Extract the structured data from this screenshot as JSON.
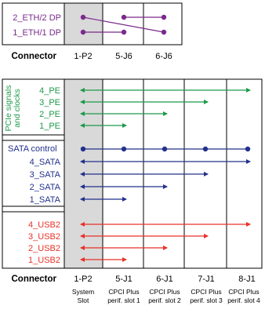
{
  "colors": {
    "purple": "#7a2a8c",
    "green": "#1f9a4a",
    "blue": "#23318c",
    "red": "#e8322a",
    "slot_gray": "#d9d9d9",
    "border": "#000000"
  },
  "top_panel": {
    "signals": [
      "2_ETH/2 DP",
      "1_ETH/1 DP"
    ],
    "connector_label": "Connector",
    "connectors": [
      "1-P2",
      "5-J6",
      "6-J6"
    ]
  },
  "bottom_panel": {
    "pcie_group_label_line1": "PCIe signals",
    "pcie_group_label_line2": "and clocks",
    "pcie_signals": [
      "4_PE",
      "3_PE",
      "2_PE",
      "1_PE"
    ],
    "sata_control_label": "SATA control",
    "sata_signals": [
      "4_SATA",
      "3_SATA",
      "2_SATA",
      "1_SATA"
    ],
    "usb_signals": [
      "4_USB2",
      "3_USB2",
      "2_USB2",
      "1_USB2"
    ],
    "connector_label": "Connector",
    "connectors": [
      "1-P2",
      "5-J1",
      "6-J1",
      "7-J1",
      "8-J1"
    ],
    "slot_line1": [
      "System",
      "CPCI Plus",
      "CPCI Plus",
      "CPCI Plus",
      "CPCI Plus"
    ],
    "slot_line2": [
      "Slot",
      "perif. slot 1",
      "perif. slot 2",
      "perif. slot 3",
      "perif. slot 4"
    ]
  }
}
